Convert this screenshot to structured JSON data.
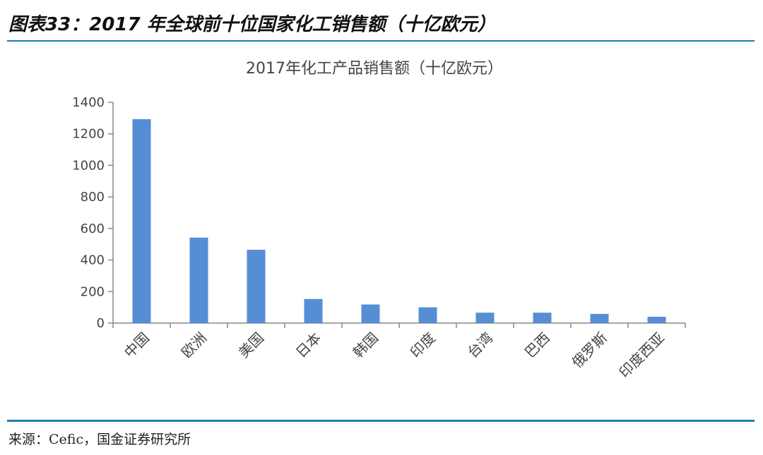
{
  "figure_title": "图表33：2017 年全球前十位国家化工销售额（十亿欧元）",
  "source": "来源：Cefic，国金证券研究所",
  "colors": {
    "bar": "#558ed5",
    "rule": "#1a7fb0",
    "axis": "#888888"
  },
  "chart_data": {
    "type": "bar",
    "title": "2017年化工产品销售额（十亿欧元）",
    "xlabel": "",
    "ylabel": "",
    "categories": [
      "中国",
      "欧洲",
      "美国",
      "日本",
      "韩国",
      "印度",
      "台湾",
      "巴西",
      "俄罗斯",
      "印度西亚"
    ],
    "values": [
      1293,
      542,
      465,
      153,
      118,
      100,
      66,
      66,
      58,
      40
    ],
    "ylim": [
      0,
      1400
    ],
    "yticks": [
      0,
      200,
      400,
      600,
      800,
      1000,
      1200,
      1400
    ],
    "grid": false,
    "legend": "none"
  }
}
